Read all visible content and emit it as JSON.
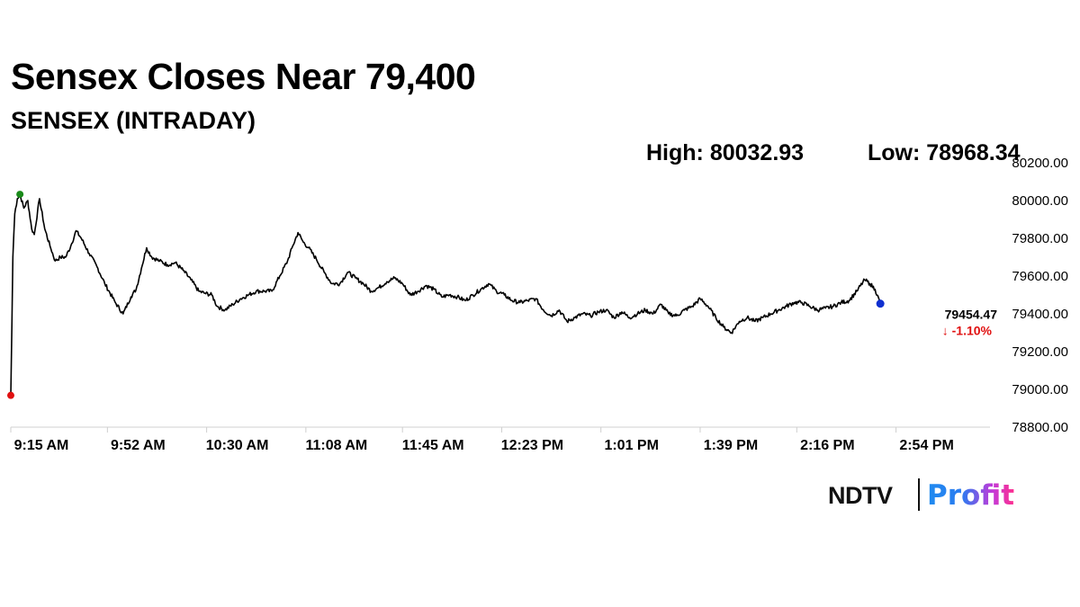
{
  "header": {
    "title": "Sensex Closes Near 79,400",
    "subtitle": "SENSEX (INTRADAY)",
    "high_text": "High: 80032.93",
    "low_text": "Low: 78968.34"
  },
  "logo": {
    "ndtv": "NDTV",
    "profit": "Profit"
  },
  "chart_data": {
    "type": "line",
    "title": "Sensex Closes Near 79,400",
    "subtitle": "SENSEX (INTRADAY)",
    "xlabel": "",
    "ylabel": "",
    "ylim": [
      78800,
      80200
    ],
    "y_ticks": [
      "80200.00",
      "80000.00",
      "79800.00",
      "79600.00",
      "79400.00",
      "79200.00",
      "79000.00",
      "78800.00"
    ],
    "x_ticks": [
      "9:15 AM",
      "9:52 AM",
      "10:30 AM",
      "11:08 AM",
      "11:45 AM",
      "12:23 PM",
      "1:01 PM",
      "1:39 PM",
      "2:16 PM",
      "2:54 PM"
    ],
    "x_tick_minutes": [
      0,
      37,
      75,
      113,
      150,
      188,
      226,
      264,
      301,
      339
    ],
    "x_range_minutes": [
      0,
      375
    ],
    "grid": false,
    "high": 80032.93,
    "low": 78968.34,
    "last_value": "79454.47",
    "change_text": "↓ -1.10%",
    "colors": {
      "line": "#000000",
      "high_marker": "#1a8a1a",
      "low_marker": "#e01010",
      "last_marker": "#1030d0",
      "change": "#e01010"
    },
    "series": [
      {
        "points": [
          [
            0,
            78968
          ],
          [
            0.8,
            79700
          ],
          [
            1.5,
            79930
          ],
          [
            2.5,
            80010
          ],
          [
            3.5,
            80033
          ],
          [
            5,
            79960
          ],
          [
            6.5,
            80000
          ],
          [
            8,
            79850
          ],
          [
            9,
            79820
          ],
          [
            11,
            80010
          ],
          [
            13,
            79850
          ],
          [
            15,
            79760
          ],
          [
            17,
            79680
          ],
          [
            19,
            79700
          ],
          [
            21,
            79700
          ],
          [
            23,
            79760
          ],
          [
            25,
            79840
          ],
          [
            27,
            79800
          ],
          [
            30,
            79720
          ],
          [
            33,
            79650
          ],
          [
            36,
            79560
          ],
          [
            40,
            79460
          ],
          [
            43,
            79400
          ],
          [
            46,
            79490
          ],
          [
            48,
            79530
          ],
          [
            50,
            79640
          ],
          [
            52,
            79750
          ],
          [
            54,
            79700
          ],
          [
            57,
            79680
          ],
          [
            60,
            79660
          ],
          [
            63,
            79670
          ],
          [
            66,
            79630
          ],
          [
            69,
            79580
          ],
          [
            72,
            79520
          ],
          [
            74,
            79510
          ],
          [
            77,
            79500
          ],
          [
            79,
            79440
          ],
          [
            82,
            79420
          ],
          [
            85,
            79450
          ],
          [
            88,
            79480
          ],
          [
            91,
            79500
          ],
          [
            94,
            79520
          ],
          [
            97,
            79520
          ],
          [
            100,
            79520
          ],
          [
            103,
            79600
          ],
          [
            106,
            79680
          ],
          [
            108,
            79760
          ],
          [
            110,
            79830
          ],
          [
            112,
            79780
          ],
          [
            114,
            79750
          ],
          [
            117,
            79690
          ],
          [
            120,
            79620
          ],
          [
            123,
            79560
          ],
          [
            126,
            79560
          ],
          [
            129,
            79620
          ],
          [
            132,
            79590
          ],
          [
            135,
            79560
          ],
          [
            138,
            79520
          ],
          [
            141,
            79540
          ],
          [
            144,
            79570
          ],
          [
            147,
            79590
          ],
          [
            150,
            79560
          ],
          [
            153,
            79500
          ],
          [
            156,
            79520
          ],
          [
            159,
            79550
          ],
          [
            162,
            79530
          ],
          [
            165,
            79490
          ],
          [
            168,
            79500
          ],
          [
            171,
            79490
          ],
          [
            174,
            79470
          ],
          [
            177,
            79500
          ],
          [
            180,
            79530
          ],
          [
            183,
            79560
          ],
          [
            186,
            79520
          ],
          [
            189,
            79500
          ],
          [
            192,
            79470
          ],
          [
            195,
            79460
          ],
          [
            198,
            79470
          ],
          [
            201,
            79480
          ],
          [
            204,
            79420
          ],
          [
            207,
            79390
          ],
          [
            210,
            79420
          ],
          [
            213,
            79360
          ],
          [
            216,
            79380
          ],
          [
            219,
            79400
          ],
          [
            222,
            79390
          ],
          [
            225,
            79410
          ],
          [
            228,
            79420
          ],
          [
            231,
            79380
          ],
          [
            234,
            79410
          ],
          [
            237,
            79380
          ],
          [
            240,
            79400
          ],
          [
            243,
            79420
          ],
          [
            246,
            79400
          ],
          [
            249,
            79450
          ],
          [
            252,
            79400
          ],
          [
            255,
            79390
          ],
          [
            258,
            79420
          ],
          [
            261,
            79440
          ],
          [
            264,
            79480
          ],
          [
            267,
            79440
          ],
          [
            270,
            79380
          ],
          [
            273,
            79330
          ],
          [
            276,
            79300
          ],
          [
            279,
            79360
          ],
          [
            282,
            79380
          ],
          [
            285,
            79360
          ],
          [
            288,
            79380
          ],
          [
            291,
            79400
          ],
          [
            294,
            79420
          ],
          [
            297,
            79440
          ],
          [
            300,
            79460
          ],
          [
            303,
            79460
          ],
          [
            306,
            79440
          ],
          [
            309,
            79420
          ],
          [
            312,
            79430
          ],
          [
            315,
            79440
          ],
          [
            318,
            79460
          ],
          [
            321,
            79470
          ],
          [
            324,
            79520
          ],
          [
            327,
            79580
          ],
          [
            329,
            79560
          ],
          [
            331,
            79530
          ],
          [
            333,
            79454
          ]
        ]
      }
    ]
  }
}
